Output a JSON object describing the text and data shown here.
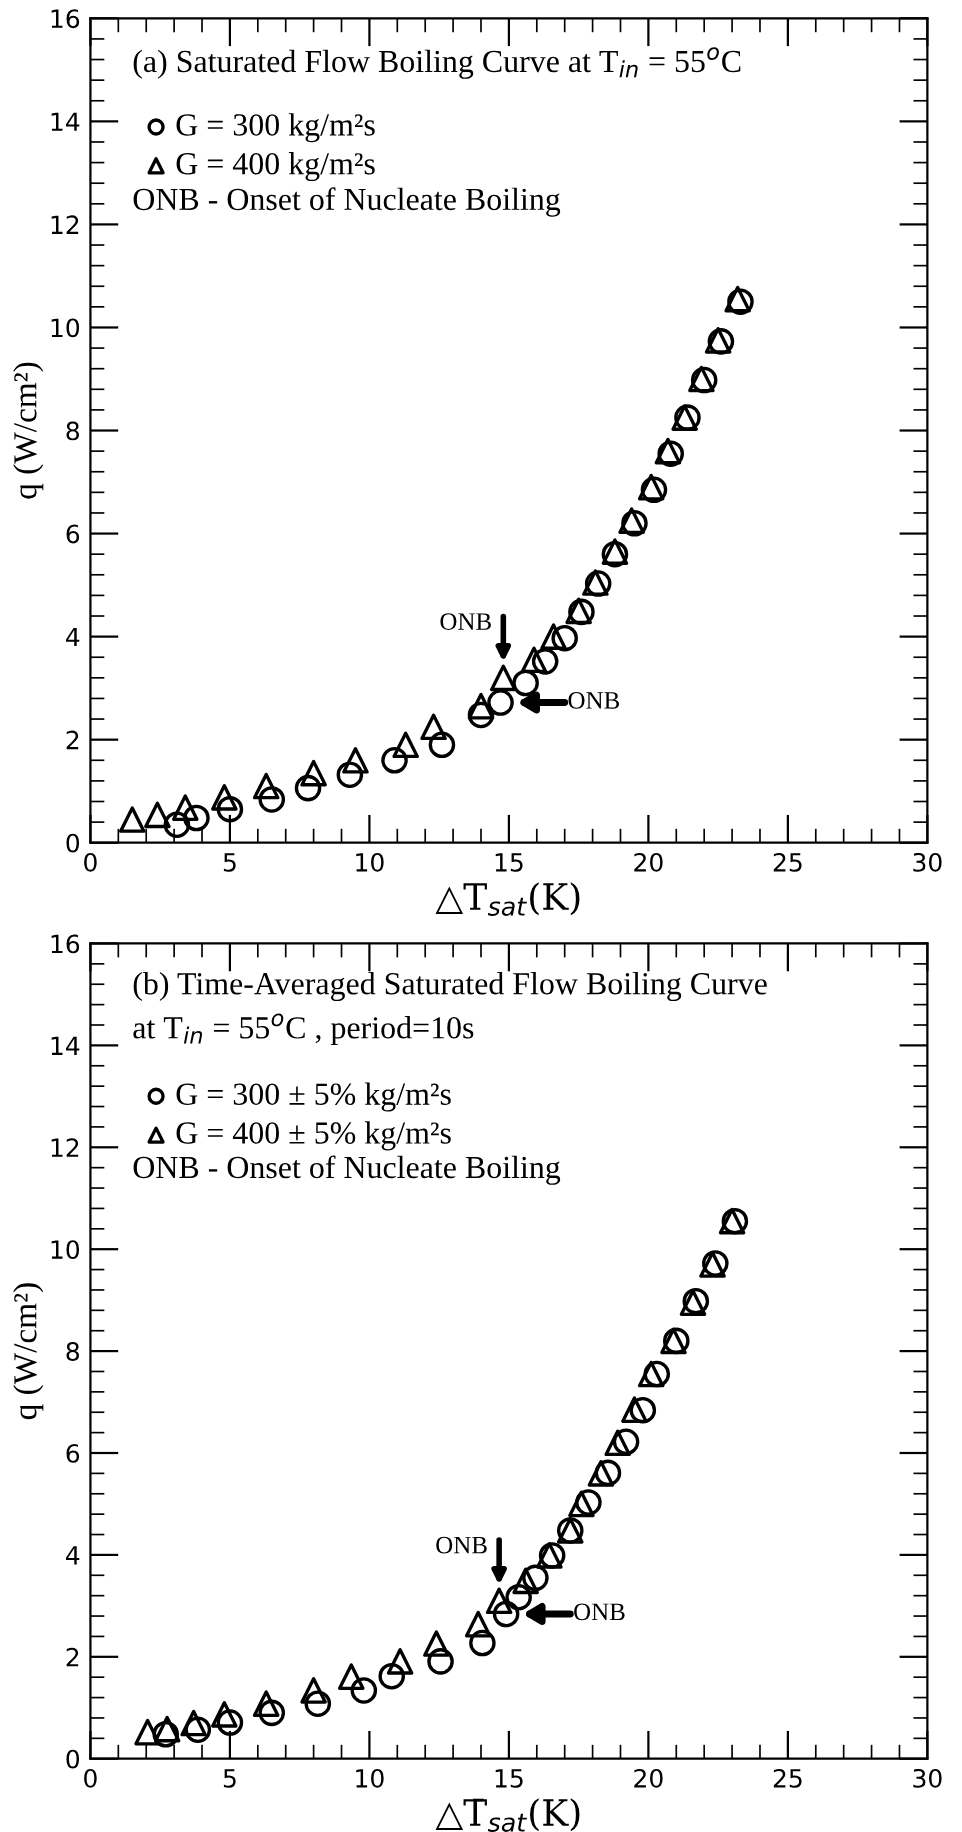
{
  "chart_data": [
    {
      "type": "scatter",
      "title": "(a) Saturated Flow Boiling Curve at T$_{in}$ = 55$^{o}$C",
      "xlabel": "△T$_{sat}$(K)",
      "ylabel": "q (W/cm²)",
      "xlim": [
        0,
        30
      ],
      "xticks": [
        0,
        5,
        10,
        15,
        20,
        25,
        30
      ],
      "ylim": [
        0,
        16
      ],
      "yticks": [
        0,
        2,
        4,
        6,
        8,
        10,
        12,
        14,
        16
      ],
      "grid": false,
      "legend": "top left",
      "annotations": [
        "ONB - Onset of Nucleate Boiling",
        {
          "text": "ONB",
          "x": 14.8,
          "y": 3.2
        },
        {
          "text": "ONB",
          "x": 14.7,
          "y": 2.72
        }
      ],
      "series": [
        {
          "name": "G = 300 kg/m²s",
          "color": "#000000",
          "marker": "circle",
          "x": [
            3.1,
            3.8,
            5.0,
            6.5,
            7.8,
            9.3,
            10.9,
            12.6,
            14.0,
            14.7,
            15.6,
            16.3,
            17.0,
            17.6,
            18.2,
            18.8,
            19.5,
            20.2,
            20.8,
            21.4,
            22.0,
            22.6,
            23.3
          ],
          "values": [
            0.35,
            0.48,
            0.65,
            0.84,
            1.06,
            1.32,
            1.6,
            1.9,
            2.48,
            2.72,
            3.1,
            3.52,
            3.97,
            4.48,
            5.03,
            5.6,
            6.2,
            6.85,
            7.55,
            8.25,
            8.98,
            9.73,
            10.5
          ]
        },
        {
          "name": "G = 400 kg/m²s",
          "color": "#000000",
          "marker": "triangle",
          "x": [
            1.5,
            2.4,
            3.4,
            4.8,
            6.3,
            8.0,
            9.5,
            11.3,
            12.3,
            14.0,
            14.8,
            15.9,
            16.6,
            17.5,
            18.1,
            18.8,
            19.4,
            20.1,
            20.7,
            21.3,
            21.9,
            22.5,
            23.2
          ],
          "values": [
            0.45,
            0.54,
            0.68,
            0.88,
            1.1,
            1.35,
            1.6,
            1.9,
            2.25,
            2.65,
            3.2,
            3.55,
            4.0,
            4.5,
            5.05,
            5.65,
            6.25,
            6.9,
            7.6,
            8.25,
            9.0,
            9.75,
            10.55
          ]
        }
      ]
    },
    {
      "type": "scatter",
      "title": "(b) Time-Averaged Saturated Flow Boiling Curve\nat T$_{in}$ = 55$^{o}$C , period=10s",
      "xlabel": "△T̄$_{sat}$(K)",
      "ylabel": "q (W/cm²)",
      "xlim": [
        0,
        30
      ],
      "xticks": [
        0,
        5,
        10,
        15,
        20,
        25,
        30
      ],
      "ylim": [
        0,
        16
      ],
      "yticks": [
        0,
        2,
        4,
        6,
        8,
        10,
        12,
        14,
        16
      ],
      "grid": false,
      "legend": "top left",
      "annotations": [
        "ONB - Onset of Nucleate Boiling",
        {
          "text": "ONB",
          "x": 14.65,
          "y": 3.1
        },
        {
          "text": "ONB",
          "x": 14.9,
          "y": 2.84
        }
      ],
      "series": [
        {
          "name": "G = 300 ± 5% kg/m²s",
          "color": "#000000",
          "marker": "circle",
          "x": [
            2.7,
            3.85,
            5.0,
            6.5,
            8.15,
            9.8,
            10.8,
            12.55,
            14.05,
            14.9,
            15.35,
            15.95,
            16.55,
            17.2,
            17.85,
            18.55,
            19.2,
            19.8,
            20.3,
            21.0,
            21.7,
            22.4,
            23.1
          ],
          "values": [
            0.48,
            0.57,
            0.71,
            0.9,
            1.08,
            1.34,
            1.62,
            1.91,
            2.27,
            2.84,
            3.17,
            3.55,
            3.99,
            4.48,
            5.03,
            5.61,
            6.22,
            6.84,
            7.55,
            8.2,
            8.98,
            9.72,
            10.55
          ]
        },
        {
          "name": "G = 400 ± 5% kg/m²s",
          "color": "#000000",
          "marker": "triangle",
          "x": [
            2.05,
            2.75,
            3.7,
            4.8,
            6.3,
            8.0,
            9.35,
            11.1,
            12.4,
            13.9,
            14.65,
            15.6,
            16.45,
            17.2,
            17.6,
            18.3,
            18.9,
            19.5,
            20.1,
            20.9,
            21.6,
            22.3,
            23.0
          ],
          "values": [
            0.52,
            0.58,
            0.7,
            0.87,
            1.08,
            1.34,
            1.61,
            1.91,
            2.26,
            2.64,
            3.1,
            3.49,
            3.99,
            4.48,
            5.0,
            5.6,
            6.2,
            6.85,
            7.55,
            8.2,
            8.95,
            9.7,
            10.55
          ]
        }
      ]
    }
  ]
}
